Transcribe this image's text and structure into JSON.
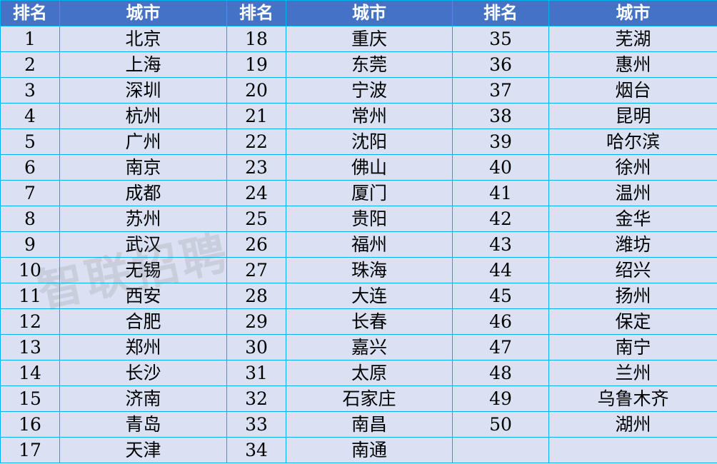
{
  "headers": [
    "排名",
    "城市",
    "排名",
    "城市",
    "排名",
    "城市"
  ],
  "rows": [
    [
      "1",
      "北京",
      "18",
      "重庆",
      "35",
      "芜湖"
    ],
    [
      "2",
      "上海",
      "19",
      "东莞",
      "36",
      "惠州"
    ],
    [
      "3",
      "深圳",
      "20",
      "宁波",
      "37",
      "烟台"
    ],
    [
      "4",
      "杭州",
      "21",
      "常州",
      "38",
      "昆明"
    ],
    [
      "5",
      "广州",
      "22",
      "沈阳",
      "39",
      "哈尔滨"
    ],
    [
      "6",
      "南京",
      "23",
      "佛山",
      "40",
      "徐州"
    ],
    [
      "7",
      "成都",
      "24",
      "厦门",
      "41",
      "温州"
    ],
    [
      "8",
      "苏州",
      "25",
      "贵阳",
      "42",
      "金华"
    ],
    [
      "9",
      "武汉",
      "26",
      "福州",
      "43",
      "潍坊"
    ],
    [
      "10",
      "无锡",
      "27",
      "珠海",
      "44",
      "绍兴"
    ],
    [
      "11",
      "西安",
      "28",
      "大连",
      "45",
      "扬州"
    ],
    [
      "12",
      "合肥",
      "29",
      "长春",
      "46",
      "保定"
    ],
    [
      "13",
      "郑州",
      "30",
      "嘉兴",
      "47",
      "南宁"
    ],
    [
      "14",
      "长沙",
      "31",
      "太原",
      "48",
      "兰州"
    ],
    [
      "15",
      "济南",
      "32",
      "石家庄",
      "49",
      "乌鲁木齐"
    ],
    [
      "16",
      "青岛",
      "33",
      "南昌",
      "50",
      "湖州"
    ],
    [
      "17",
      "天津",
      "34",
      "南通",
      "",
      ""
    ]
  ],
  "watermark": "智联招聘",
  "colors": {
    "header_bg": "#4472C4",
    "cell_bg": "#D9E1F2",
    "border": "#00B0F0"
  }
}
